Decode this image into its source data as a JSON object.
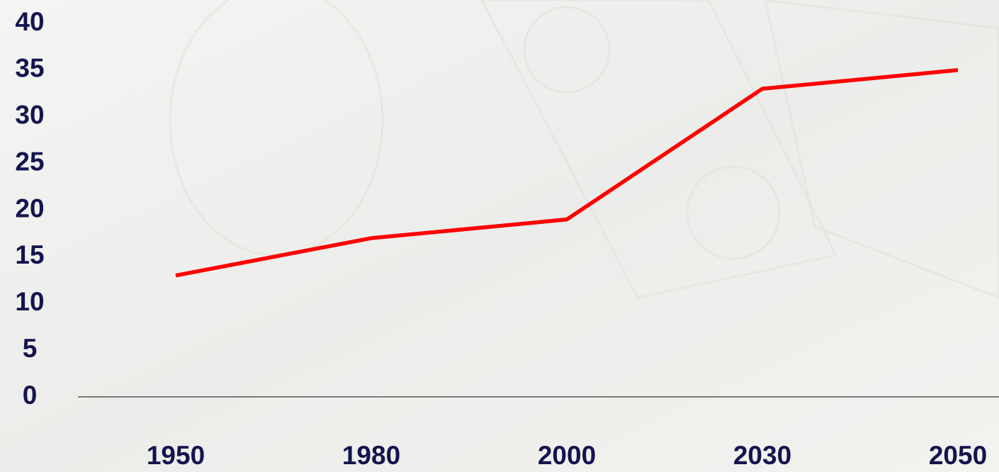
{
  "chart_data": {
    "type": "line",
    "categories": [
      "1950",
      "1980",
      "2000",
      "2030",
      "2050"
    ],
    "series": [
      {
        "color": "#ff0000",
        "values": [
          13,
          17,
          19,
          33,
          35
        ]
      }
    ],
    "ylim": [
      0,
      40
    ],
    "yticks": [
      0,
      5,
      10,
      15,
      20,
      25,
      30,
      35,
      40
    ],
    "grid": false
  }
}
